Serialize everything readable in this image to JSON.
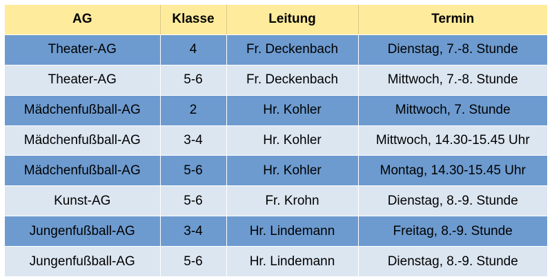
{
  "table": {
    "headers": [
      "AG",
      "Klasse",
      "Leitung",
      "Termin"
    ],
    "rows": [
      [
        "Theater-AG",
        "4",
        "Fr. Deckenbach",
        "Dienstag, 7.-8. Stunde"
      ],
      [
        "Theater-AG",
        "5-6",
        "Fr. Deckenbach",
        "Mittwoch, 7.-8. Stunde"
      ],
      [
        "Mädchenfußball-AG",
        "2",
        "Hr. Kohler",
        "Mittwoch, 7. Stunde"
      ],
      [
        "Mädchenfußball-AG",
        "3-4",
        "Hr. Kohler",
        "Mittwoch, 14.30-15.45 Uhr"
      ],
      [
        "Mädchenfußball-AG",
        "5-6",
        "Hr. Kohler",
        "Montag, 14.30-15.45 Uhr"
      ],
      [
        "Kunst-AG",
        "5-6",
        "Fr. Krohn",
        "Dienstag, 8.-9. Stunde"
      ],
      [
        "Jungenfußball-AG",
        "3-4",
        "Hr. Lindemann",
        "Freitag, 8.-9. Stunde"
      ],
      [
        "Jungenfußball-AG",
        "5-6",
        "Hr. Lindemann",
        "Dienstag, 8.-9. Stunde"
      ]
    ]
  },
  "colors": {
    "header_bg": "#ffeb9c",
    "row_dark_bg": "#6d9bd0",
    "row_light_bg": "#dce6f1"
  }
}
